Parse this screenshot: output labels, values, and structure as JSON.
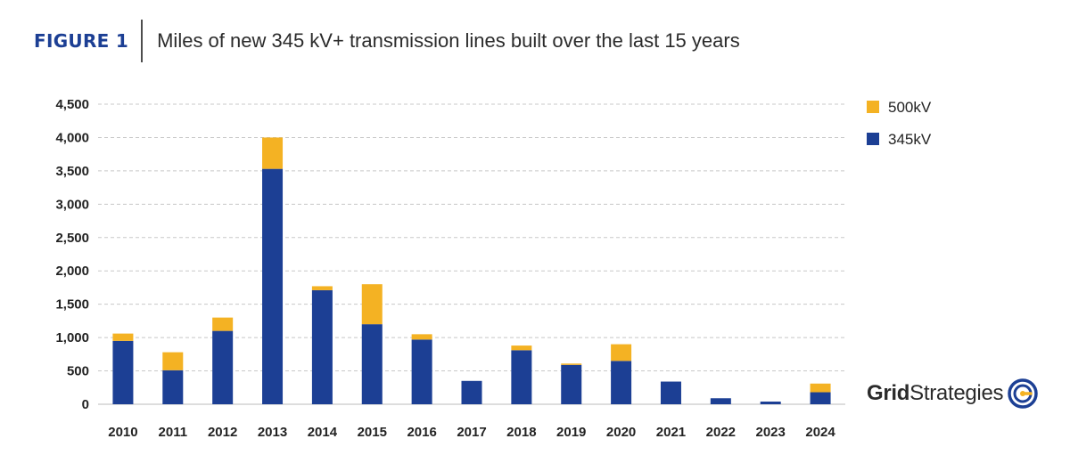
{
  "header": {
    "figure_label": "FIGURE 1",
    "title": "Miles of new 345 kV+ transmission lines built over the last 15 years"
  },
  "colors": {
    "kv345": "#1c3f94",
    "kv500": "#f4b223",
    "grid": "#c8c8c8",
    "text": "#222222"
  },
  "logo": {
    "bold": "Grid",
    "regular": "Strategies"
  },
  "chart_data": {
    "type": "bar",
    "stacked": true,
    "title": "Miles of new 345 kV+ transmission lines built over the last 15 years",
    "xlabel": "",
    "ylabel": "",
    "ylim": [
      0,
      4500
    ],
    "yticks": [
      0,
      500,
      1000,
      1500,
      2000,
      2500,
      3000,
      3500,
      4000,
      4500
    ],
    "ytick_labels": [
      "0",
      "500",
      "1,000",
      "1,500",
      "2,000",
      "2,500",
      "3,000",
      "3,500",
      "4,000",
      "4,500"
    ],
    "grid": true,
    "legend_position": "top-right",
    "categories": [
      "2010",
      "2011",
      "2012",
      "2013",
      "2014",
      "2015",
      "2016",
      "2017",
      "2018",
      "2019",
      "2020",
      "2021",
      "2022",
      "2023",
      "2024"
    ],
    "series": [
      {
        "name": "345kV",
        "color": "#1c3f94",
        "values": [
          950,
          510,
          1100,
          3530,
          1710,
          1200,
          970,
          350,
          810,
          590,
          650,
          340,
          90,
          40,
          180
        ]
      },
      {
        "name": "500kV",
        "color": "#f4b223",
        "values": [
          110,
          270,
          200,
          470,
          60,
          600,
          80,
          0,
          70,
          20,
          250,
          0,
          0,
          0,
          130
        ]
      }
    ],
    "legend": [
      "500kV",
      "345kV"
    ]
  }
}
